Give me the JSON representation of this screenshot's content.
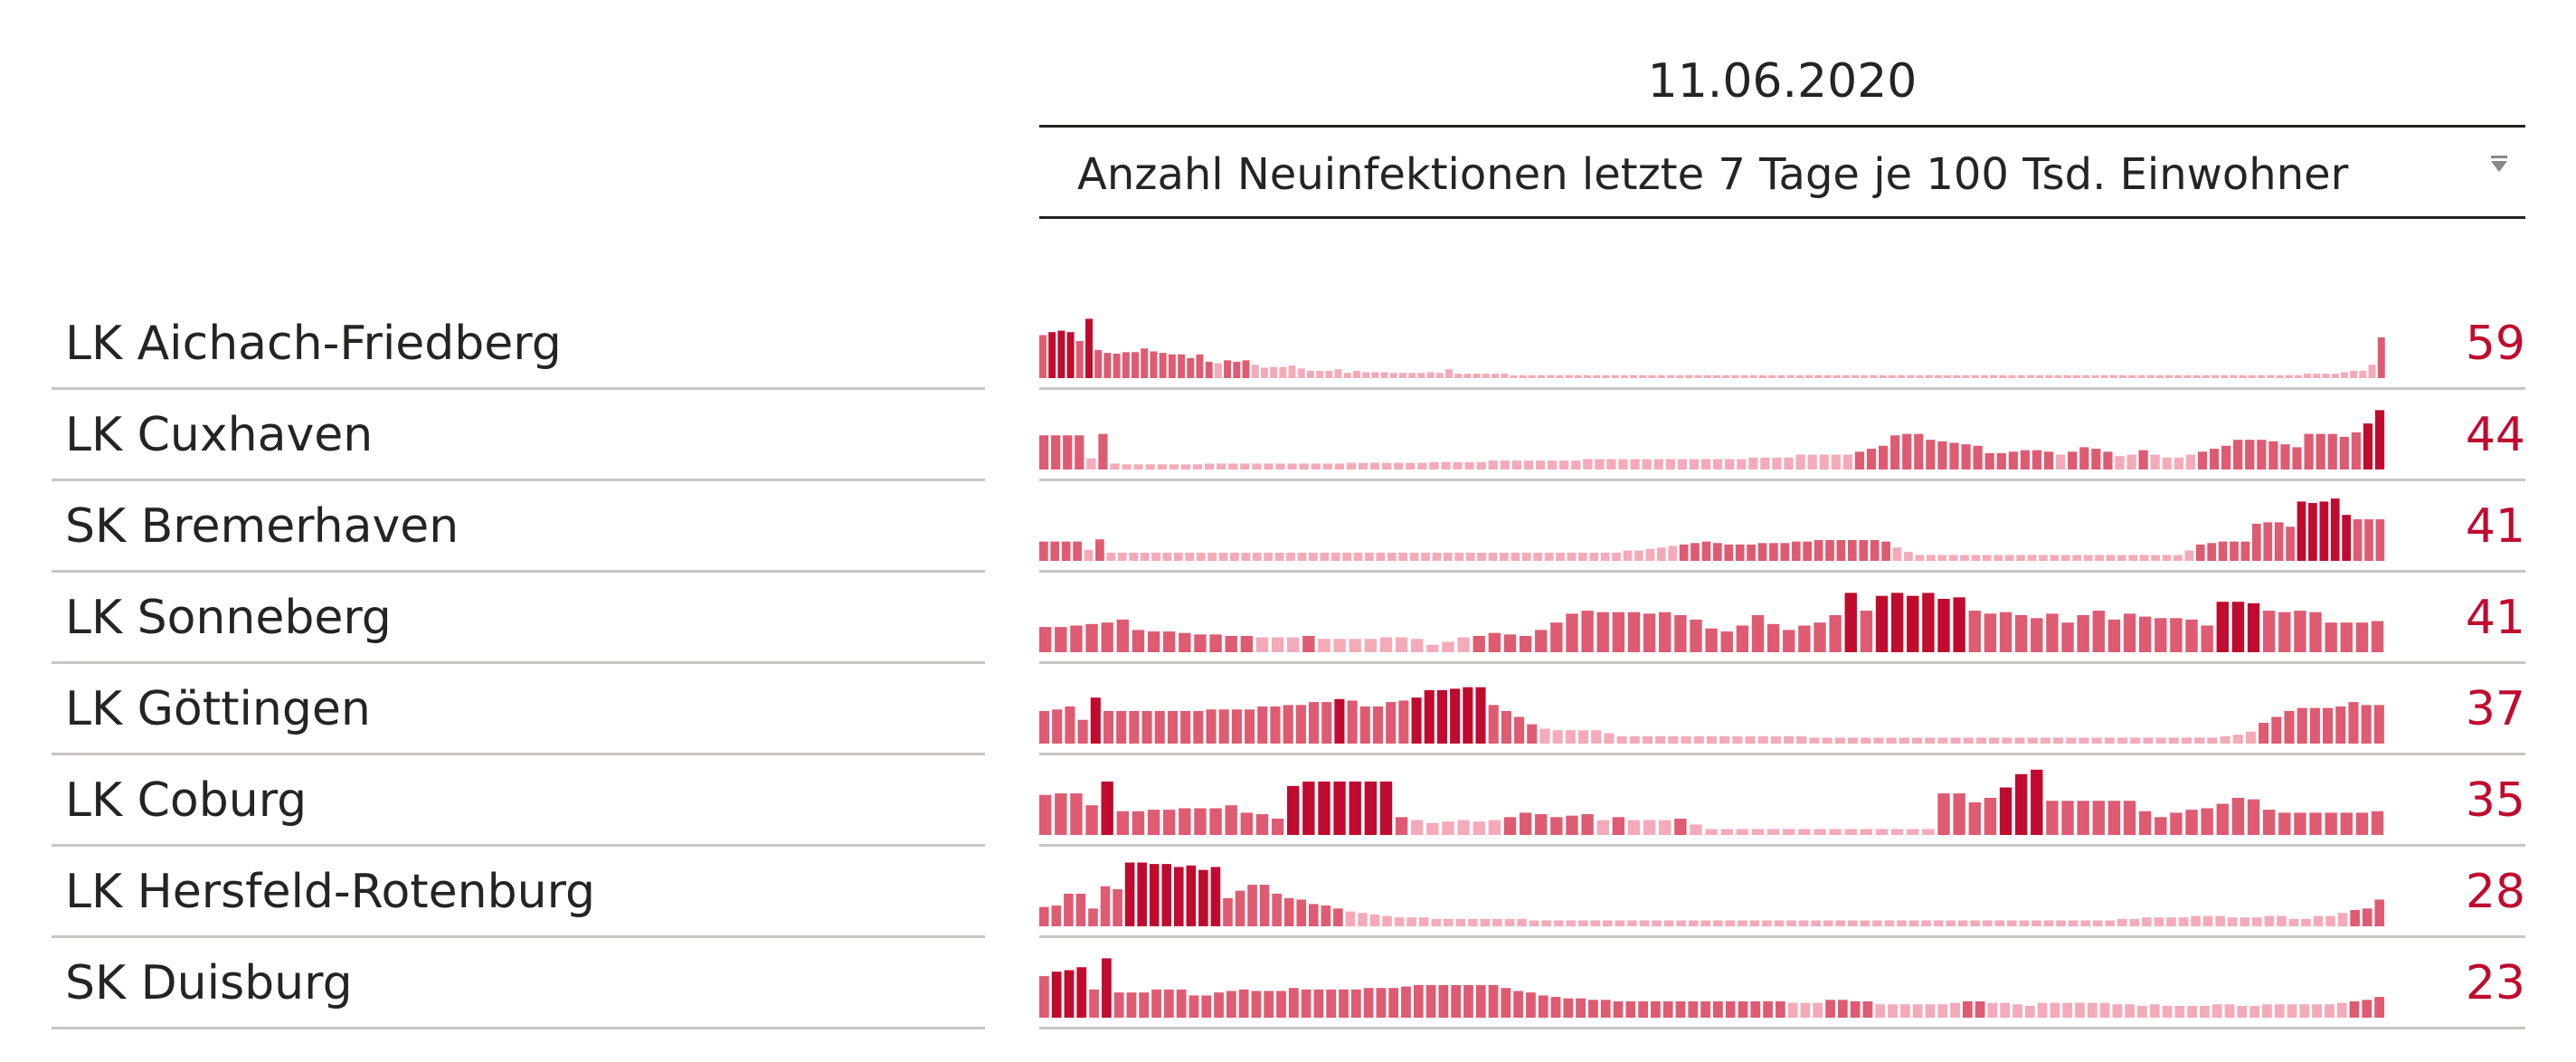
{
  "chart_data": {
    "type": "table",
    "date_header": "11.06.2020",
    "measure_header": "Anzahl Neuinfektionen letzte 7 Tage je 100 Tsd. Einwohner",
    "sort_direction": "descending",
    "colors": {
      "bar_high": "#c00a2e",
      "bar_mid": "#de5b72",
      "bar_low": "#f4aab8",
      "value_text": "#c00a2e"
    },
    "rows": [
      {
        "name": "LK Aichach-Friedberg",
        "value": "59",
        "spark": [
          58,
          62,
          64,
          62,
          50,
          80,
          38,
          34,
          33,
          35,
          35,
          40,
          36,
          34,
          32,
          32,
          27,
          32,
          22,
          20,
          24,
          22,
          24,
          18,
          14,
          15,
          15,
          17,
          13,
          10,
          10,
          10,
          12,
          7,
          10,
          8,
          8,
          8,
          7,
          7,
          7,
          7,
          8,
          7,
          12,
          6,
          6,
          6,
          6,
          6,
          6,
          3,
          4,
          4,
          4,
          4,
          4,
          4,
          4,
          4,
          4,
          4,
          4,
          4,
          4,
          4,
          4,
          4,
          4,
          4,
          4,
          4,
          4,
          4,
          4,
          4,
          4,
          4,
          4,
          4,
          4,
          4,
          4,
          4,
          4,
          4,
          4,
          4,
          4,
          4,
          4,
          4,
          4,
          4,
          4,
          4,
          4,
          4,
          4,
          4,
          4,
          4,
          4,
          4,
          4,
          4,
          4,
          4,
          4,
          4,
          4,
          4,
          4,
          4,
          4,
          4,
          4,
          4,
          4,
          4,
          4,
          4,
          4,
          4,
          4,
          4,
          4,
          4,
          4,
          4,
          4,
          4,
          4,
          4,
          4,
          4,
          4,
          6,
          6,
          6,
          6,
          8,
          10,
          10,
          18,
          55
        ]
      },
      {
        "name": "LK Cuxhaven",
        "value": "44",
        "spark": [
          46,
          46,
          46,
          46,
          15,
          48,
          8,
          7,
          7,
          7,
          7,
          7,
          7,
          7,
          8,
          8,
          8,
          8,
          8,
          8,
          8,
          8,
          8,
          8,
          8,
          8,
          9,
          9,
          9,
          9,
          9,
          9,
          9,
          10,
          10,
          10,
          10,
          10,
          12,
          12,
          12,
          12,
          12,
          12,
          12,
          12,
          14,
          14,
          14,
          14,
          14,
          14,
          14,
          14,
          14,
          14,
          14,
          14,
          14,
          14,
          16,
          16,
          16,
          16,
          20,
          20,
          20,
          20,
          20,
          24,
          28,
          32,
          46,
          48,
          48,
          40,
          38,
          36,
          34,
          32,
          22,
          22,
          24,
          26,
          26,
          24,
          20,
          24,
          30,
          28,
          24,
          18,
          20,
          26,
          20,
          16,
          16,
          20,
          24,
          28,
          32,
          40,
          40,
          40,
          38,
          34,
          30,
          48,
          48,
          48,
          44,
          50,
          62,
          80
        ]
      },
      {
        "name": "SK Bremerhaven",
        "value": "41",
        "spark": [
          26,
          26,
          26,
          26,
          15,
          29,
          11,
          11,
          11,
          11,
          11,
          11,
          11,
          11,
          11,
          11,
          11,
          11,
          11,
          11,
          11,
          11,
          11,
          11,
          11,
          11,
          11,
          11,
          11,
          11,
          11,
          11,
          11,
          11,
          11,
          11,
          11,
          11,
          11,
          11,
          11,
          11,
          11,
          11,
          11,
          11,
          11,
          11,
          11,
          11,
          11,
          11,
          14,
          14,
          16,
          18,
          20,
          22,
          24,
          26,
          24,
          22,
          22,
          22,
          24,
          24,
          24,
          26,
          26,
          28,
          28,
          28,
          28,
          28,
          28,
          26,
          18,
          12,
          8,
          8,
          8,
          8,
          8,
          8,
          8,
          8,
          8,
          8,
          8,
          8,
          8,
          8,
          8,
          8,
          8,
          8,
          8,
          8,
          8,
          8,
          8,
          8,
          14,
          22,
          24,
          26,
          26,
          26,
          50,
          52,
          52,
          46,
          80,
          78,
          80,
          84,
          62,
          56,
          56,
          56
        ]
      },
      {
        "name": "LK Sonneberg",
        "value": "41",
        "spark": [
          34,
          34,
          36,
          38,
          40,
          44,
          30,
          28,
          28,
          26,
          24,
          24,
          22,
          22,
          20,
          20,
          20,
          22,
          18,
          18,
          18,
          18,
          20,
          20,
          18,
          10,
          14,
          20,
          22,
          26,
          24,
          22,
          30,
          40,
          52,
          56,
          54,
          54,
          54,
          52,
          54,
          50,
          44,
          32,
          28,
          36,
          50,
          38,
          30,
          36,
          40,
          50,
          80,
          56,
          76,
          80,
          76,
          80,
          72,
          74,
          56,
          52,
          54,
          50,
          46,
          52,
          40,
          50,
          56,
          44,
          52,
          48,
          46,
          46,
          44,
          36,
          68,
          68,
          66,
          56,
          54,
          56,
          54,
          40,
          40,
          40,
          42
        ]
      },
      {
        "name": "LK Göttingen",
        "value": "37",
        "spark": [
          44,
          46,
          50,
          32,
          62,
          44,
          44,
          44,
          44,
          44,
          44,
          44,
          44,
          46,
          46,
          46,
          46,
          50,
          50,
          52,
          52,
          56,
          56,
          60,
          58,
          50,
          50,
          56,
          58,
          62,
          72,
          72,
          74,
          76,
          76,
          52,
          44,
          36,
          26,
          20,
          18,
          18,
          18,
          18,
          14,
          10,
          10,
          10,
          10,
          10,
          10,
          10,
          10,
          10,
          10,
          10,
          10,
          10,
          10,
          10,
          8,
          8,
          8,
          8,
          8,
          8,
          8,
          8,
          8,
          8,
          8,
          8,
          8,
          8,
          8,
          8,
          8,
          8,
          8,
          8,
          8,
          8,
          8,
          8,
          8,
          8,
          8,
          8,
          8,
          8,
          8,
          8,
          10,
          12,
          16,
          28,
          36,
          44,
          48,
          48,
          48,
          50,
          56,
          52,
          52
        ]
      },
      {
        "name": "LK Coburg",
        "value": "35",
        "spark": [
          54,
          56,
          56,
          40,
          72,
          32,
          32,
          34,
          34,
          36,
          36,
          36,
          40,
          30,
          28,
          22,
          66,
          72,
          72,
          72,
          72,
          72,
          72,
          24,
          20,
          16,
          18,
          20,
          18,
          20,
          24,
          30,
          28,
          24,
          26,
          28,
          20,
          24,
          20,
          20,
          20,
          22,
          14,
          8,
          8,
          8,
          8,
          8,
          8,
          8,
          8,
          8,
          8,
          8,
          8,
          8,
          8,
          8,
          56,
          56,
          44,
          50,
          64,
          82,
          88,
          46,
          46,
          46,
          46,
          46,
          46,
          32,
          24,
          30,
          34,
          36,
          42,
          50,
          48,
          34,
          30,
          30,
          30,
          30,
          30,
          30,
          32
        ]
      },
      {
        "name": "LK Hersfeld-Rotenburg",
        "value": "28",
        "spark": [
          26,
          28,
          44,
          44,
          24,
          54,
          50,
          86,
          86,
          84,
          84,
          80,
          82,
          76,
          80,
          38,
          48,
          56,
          56,
          44,
          38,
          36,
          30,
          28,
          24,
          20,
          18,
          16,
          14,
          12,
          12,
          12,
          10,
          10,
          10,
          10,
          10,
          10,
          10,
          10,
          8,
          8,
          8,
          8,
          8,
          8,
          8,
          8,
          8,
          8,
          8,
          8,
          8,
          8,
          8,
          8,
          8,
          8,
          8,
          8,
          8,
          8,
          8,
          8,
          8,
          8,
          8,
          8,
          8,
          8,
          8,
          8,
          8,
          8,
          8,
          8,
          8,
          8,
          8,
          8,
          8,
          8,
          8,
          8,
          8,
          8,
          8,
          8,
          10,
          10,
          12,
          12,
          12,
          12,
          14,
          14,
          14,
          12,
          12,
          12,
          14,
          14,
          10,
          10,
          14,
          14,
          18,
          22,
          24,
          36
        ]
      },
      {
        "name": "SK Duisburg",
        "value": "23",
        "spark": [
          56,
          62,
          64,
          68,
          38,
          80,
          34,
          34,
          34,
          38,
          38,
          38,
          30,
          30,
          34,
          36,
          38,
          36,
          36,
          36,
          40,
          38,
          38,
          38,
          38,
          38,
          40,
          40,
          40,
          42,
          44,
          44,
          44,
          44,
          44,
          44,
          44,
          40,
          36,
          34,
          30,
          28,
          26,
          26,
          24,
          24,
          22,
          22,
          22,
          22,
          22,
          22,
          22,
          22,
          22,
          22,
          22,
          22,
          22,
          22,
          20,
          20,
          20,
          24,
          24,
          22,
          22,
          18,
          18,
          18,
          18,
          18,
          18,
          20,
          22,
          22,
          20,
          20,
          18,
          16,
          20,
          20,
          20,
          20,
          20,
          20,
          18,
          18,
          16,
          18,
          16,
          16,
          16,
          16,
          18,
          18,
          16,
          16,
          18,
          18,
          18,
          18,
          18,
          18,
          20,
          22,
          24,
          28
        ]
      }
    ]
  }
}
